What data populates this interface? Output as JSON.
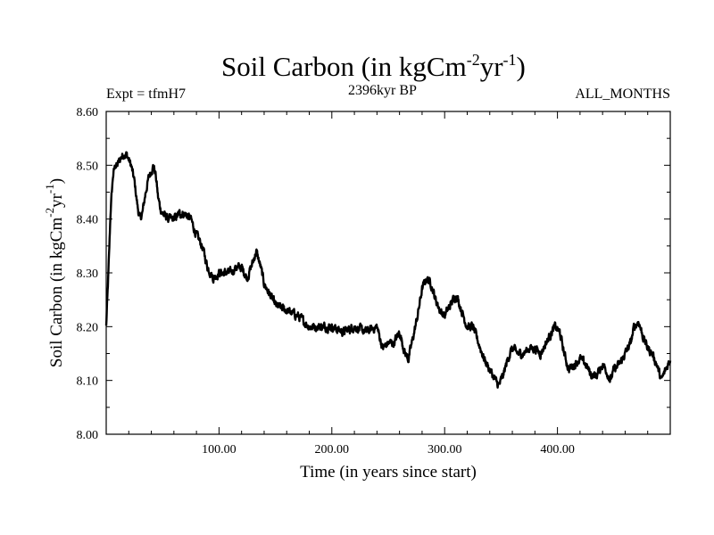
{
  "chart_data": {
    "type": "line",
    "title": "Soil Carbon (in kgCm",
    "title_sup1": "-2",
    "title_mid": "yr",
    "title_sup2": "-1",
    "title_end": ")",
    "left_label": "Expt = tfmH7",
    "center_label": "2396kyr BP",
    "right_label": "ALL_MONTHS",
    "xlabel": "Time (in years since start)",
    "ylabel": "Soil Carbon (in kgCm",
    "ylabel_sup1": "-2",
    "ylabel_mid": "yr",
    "ylabel_sup2": "-1",
    "ylabel_end": ")",
    "xlim": [
      0,
      500
    ],
    "ylim": [
      8.0,
      8.6
    ],
    "xticks": [
      100,
      200,
      300,
      400
    ],
    "xtick_labels": [
      "100.00",
      "200.00",
      "300.00",
      "400.00"
    ],
    "yticks": [
      8.0,
      8.1,
      8.2,
      8.3,
      8.4,
      8.5,
      8.6
    ],
    "ytick_labels": [
      "8.00",
      "8.10",
      "8.20",
      "8.30",
      "8.40",
      "8.50",
      "8.60"
    ],
    "grid": false,
    "series": [
      {
        "name": "Soil Carbon",
        "color": "#000000",
        "x": [
          0,
          2,
          4,
          6,
          8,
          10,
          12,
          15,
          18,
          20,
          22,
          25,
          28,
          30,
          32,
          35,
          38,
          40,
          42,
          44,
          46,
          48,
          50,
          55,
          60,
          65,
          70,
          75,
          80,
          85,
          90,
          95,
          100,
          105,
          110,
          115,
          120,
          125,
          130,
          133,
          137,
          140,
          145,
          150,
          160,
          170,
          180,
          190,
          200,
          210,
          220,
          230,
          240,
          245,
          250,
          255,
          260,
          265,
          268,
          272,
          276,
          280,
          284,
          288,
          292,
          296,
          300,
          305,
          310,
          312,
          315,
          320,
          325,
          330,
          335,
          340,
          345,
          348,
          352,
          356,
          360,
          365,
          370,
          375,
          380,
          385,
          390,
          395,
          398,
          402,
          406,
          410,
          415,
          420,
          425,
          430,
          435,
          440,
          443,
          447,
          450,
          455,
          460,
          465,
          468,
          472,
          476,
          480,
          484,
          488,
          492,
          496,
          500
        ],
        "y": [
          8.2,
          8.3,
          8.42,
          8.48,
          8.5,
          8.5,
          8.51,
          8.52,
          8.52,
          8.51,
          8.5,
          8.47,
          8.42,
          8.4,
          8.41,
          8.45,
          8.48,
          8.49,
          8.5,
          8.48,
          8.44,
          8.42,
          8.41,
          8.4,
          8.4,
          8.41,
          8.41,
          8.4,
          8.37,
          8.35,
          8.31,
          8.29,
          8.3,
          8.3,
          8.3,
          8.31,
          8.31,
          8.29,
          8.32,
          8.34,
          8.31,
          8.28,
          8.26,
          8.24,
          8.23,
          8.22,
          8.2,
          8.2,
          8.2,
          8.19,
          8.2,
          8.19,
          8.2,
          8.16,
          8.17,
          8.17,
          8.19,
          8.15,
          8.14,
          8.18,
          8.22,
          8.27,
          8.29,
          8.28,
          8.25,
          8.23,
          8.22,
          8.24,
          8.26,
          8.25,
          8.23,
          8.2,
          8.2,
          8.17,
          8.14,
          8.12,
          8.1,
          8.09,
          8.11,
          8.14,
          8.16,
          8.15,
          8.15,
          8.16,
          8.16,
          8.15,
          8.17,
          8.19,
          8.2,
          8.19,
          8.15,
          8.12,
          8.13,
          8.14,
          8.13,
          8.11,
          8.11,
          8.13,
          8.12,
          8.1,
          8.12,
          8.13,
          8.15,
          8.17,
          8.2,
          8.21,
          8.18,
          8.16,
          8.15,
          8.13,
          8.1,
          8.12,
          8.14
        ]
      }
    ]
  }
}
